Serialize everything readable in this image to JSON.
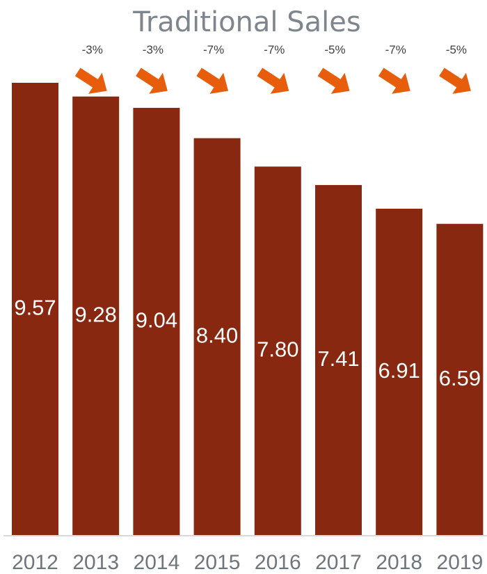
{
  "chart_data": {
    "type": "bar",
    "title": "Traditional Sales",
    "categories": [
      "2012",
      "2013",
      "2014",
      "2015",
      "2016",
      "2017",
      "2018",
      "2019"
    ],
    "values": [
      9.57,
      9.28,
      9.04,
      8.4,
      7.8,
      7.41,
      6.91,
      6.59
    ],
    "value_labels": [
      "9.57",
      "9.28",
      "9.04",
      "8.40",
      "7.80",
      "7.41",
      "6.91",
      "6.59"
    ],
    "change_labels": [
      "-3%",
      "-3%",
      "-7%",
      "-7%",
      "-5%",
      "-7%",
      "-5%"
    ],
    "ylim": [
      0,
      9.57
    ],
    "grid": false,
    "legend": "none",
    "colors": {
      "bar": "#882811",
      "arrow": "#e85d0c",
      "axis": "#d9d9d9"
    }
  }
}
